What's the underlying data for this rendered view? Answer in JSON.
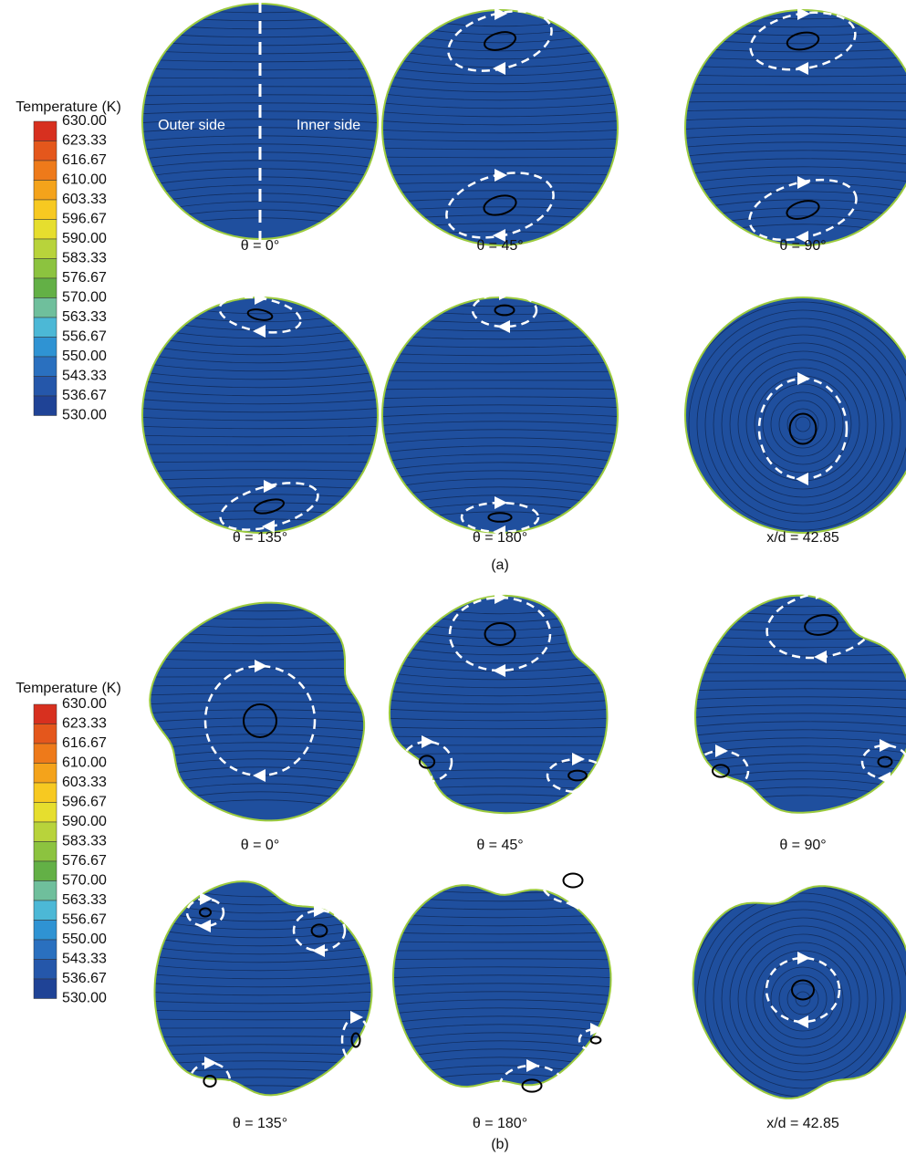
{
  "panels": [
    {
      "label": "(a)",
      "colorbar": {
        "title": "Temperature (K)",
        "levels": [
          "630.00",
          "623.33",
          "616.67",
          "610.00",
          "603.33",
          "596.67",
          "590.00",
          "583.33",
          "576.67",
          "570.00",
          "563.33",
          "556.67",
          "550.00",
          "543.33",
          "536.67",
          "530.00"
        ],
        "colors": [
          "#d7301f",
          "#e4571c",
          "#ee7a1a",
          "#f4a31b",
          "#f7c921",
          "#e6de2e",
          "#b8d33b",
          "#8cc33f",
          "#63b046",
          "#6fbf9c",
          "#4cb8d6",
          "#2f93d3",
          "#2a70bf",
          "#2557aa",
          "#1f4396"
        ]
      },
      "plots": [
        {
          "caption": "θ = 0°",
          "annotations": [
            "Outer side",
            "Inner side"
          ]
        },
        {
          "caption": "θ = 45°"
        },
        {
          "caption": "θ = 90°"
        },
        {
          "caption": "θ = 135°"
        },
        {
          "caption": "θ = 180°"
        },
        {
          "caption": "x/d = 42.85"
        }
      ]
    },
    {
      "label": "(b)",
      "colorbar": {
        "title": "Temperature (K)",
        "levels": [
          "630.00",
          "623.33",
          "616.67",
          "610.00",
          "603.33",
          "596.67",
          "590.00",
          "583.33",
          "576.67",
          "570.00",
          "563.33",
          "556.67",
          "550.00",
          "543.33",
          "536.67",
          "530.00"
        ],
        "colors": [
          "#d7301f",
          "#e4571c",
          "#ee7a1a",
          "#f4a31b",
          "#f7c921",
          "#e6de2e",
          "#b8d33b",
          "#8cc33f",
          "#63b046",
          "#6fbf9c",
          "#4cb8d6",
          "#2f93d3",
          "#2a70bf",
          "#2557aa",
          "#1f4396"
        ]
      },
      "plots": [
        {
          "caption": "θ = 0°"
        },
        {
          "caption": "θ = 45°"
        },
        {
          "caption": "θ = 90°"
        },
        {
          "caption": "θ = 135°"
        },
        {
          "caption": "θ = 180°"
        },
        {
          "caption": "x/d = 42.85"
        }
      ]
    }
  ]
}
